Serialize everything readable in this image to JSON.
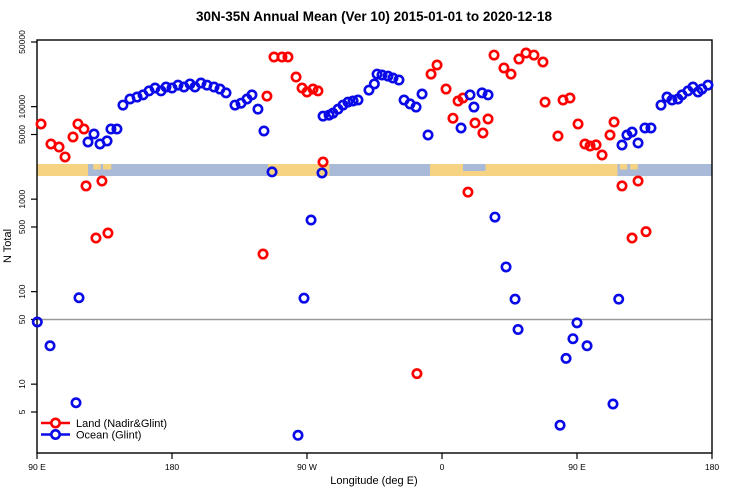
{
  "window": {
    "background": "#ffffff"
  },
  "chart_data": {
    "type": "scatter",
    "title": "30N-35N Annual Mean (Ver 10)   2015-01-01 to 2020-12-18",
    "xlabel": "Longitude (deg E)",
    "ylabel": "N Total",
    "x_axis": {
      "min": 90,
      "max": 540,
      "ticks": [
        {
          "value": 90,
          "label": "90 E"
        },
        {
          "value": 180,
          "label": "180"
        },
        {
          "value": 270,
          "label": "90 W"
        },
        {
          "value": 360,
          "label": "0"
        },
        {
          "value": 450,
          "label": "90 E"
        },
        {
          "value": 540,
          "label": "180"
        }
      ]
    },
    "y_axis": {
      "scale": "log",
      "min": 2,
      "max": 60000,
      "ticks": [
        {
          "value": 50000,
          "label": "50000"
        },
        {
          "value": 10000,
          "label": "10000"
        },
        {
          "value": 5000,
          "label": "5000"
        },
        {
          "value": 1000,
          "label": "1000"
        },
        {
          "value": 500,
          "label": "500"
        },
        {
          "value": 100,
          "label": "100"
        },
        {
          "value": 50,
          "label": "50"
        },
        {
          "value": 10,
          "label": "10"
        },
        {
          "value": 5,
          "label": "5"
        }
      ]
    },
    "reference_line": {
      "value": 50,
      "color": "#999999"
    },
    "map_band": {
      "land_color": "#F6D383",
      "ocean_color": "#A9BAD9",
      "segments": [
        {
          "from": 90,
          "to": 124,
          "type": "land"
        },
        {
          "from": 124,
          "to": 244,
          "type": "ocean"
        },
        {
          "from": 244,
          "to": 285,
          "type": "land"
        },
        {
          "from": 285,
          "to": 352,
          "type": "ocean"
        },
        {
          "from": 352,
          "to": 374,
          "type": "land"
        },
        {
          "from": 374,
          "to": 389,
          "type": "mixed"
        },
        {
          "from": 389,
          "to": 477,
          "type": "land"
        },
        {
          "from": 477,
          "to": 540,
          "type": "ocean"
        }
      ],
      "islands": [
        {
          "from": 127.5,
          "to": 132.5
        },
        {
          "from": 134,
          "to": 139.5
        },
        {
          "from": 478.5,
          "to": 483.5
        },
        {
          "from": 485.5,
          "to": 490.5
        }
      ]
    },
    "legend": {
      "position": "bottom-left"
    },
    "series": [
      {
        "name": "Land (Nadir&Glint)",
        "color": "#FF0000",
        "points": [
          [
            92.7,
            6500
          ],
          [
            99.3,
            3950
          ],
          [
            104.7,
            3660
          ],
          [
            108.7,
            2860
          ],
          [
            114,
            4700
          ],
          [
            117.3,
            6500
          ],
          [
            121.3,
            5730
          ],
          [
            122.7,
            1390
          ],
          [
            129.3,
            380
          ],
          [
            133.3,
            1570
          ],
          [
            137.3,
            430
          ],
          [
            240.7,
            255
          ],
          [
            243.3,
            13000
          ],
          [
            248,
            34400
          ],
          [
            253.3,
            34400
          ],
          [
            257.3,
            34400
          ],
          [
            262.7,
            20900
          ],
          [
            266.7,
            15900
          ],
          [
            270,
            14400
          ],
          [
            274,
            15500
          ],
          [
            277.3,
            14800
          ],
          [
            280.7,
            2520
          ],
          [
            343.3,
            13
          ],
          [
            352.7,
            22500
          ],
          [
            356.7,
            28200
          ],
          [
            362.7,
            15500
          ],
          [
            367.3,
            7500
          ],
          [
            370.7,
            11500
          ],
          [
            374,
            12400
          ],
          [
            377.3,
            1190
          ],
          [
            382,
            6650
          ],
          [
            387.3,
            5190
          ],
          [
            390.7,
            7360
          ],
          [
            394.7,
            36100
          ],
          [
            401.3,
            26200
          ],
          [
            406,
            22500
          ],
          [
            411.3,
            32700
          ],
          [
            416,
            38000
          ],
          [
            421.3,
            36100
          ],
          [
            427.3,
            30400
          ],
          [
            428.7,
            11200
          ],
          [
            437.3,
            4820
          ],
          [
            440.7,
            11800
          ],
          [
            445.3,
            12400
          ],
          [
            450.7,
            6500
          ],
          [
            455.3,
            3950
          ],
          [
            458.7,
            3760
          ],
          [
            462.7,
            3860
          ],
          [
            466.7,
            3000
          ],
          [
            472,
            4940
          ],
          [
            474.7,
            6820
          ],
          [
            480,
            1390
          ],
          [
            486.7,
            380
          ],
          [
            490.7,
            1570
          ],
          [
            496,
            445
          ]
        ]
      },
      {
        "name": "Ocean (Glint)",
        "color": "#0A0AE8",
        "points": [
          [
            90.2,
            47
          ],
          [
            98.7,
            26
          ],
          [
            116,
            6.3
          ],
          [
            118,
            86
          ],
          [
            124,
            4150
          ],
          [
            128,
            5060
          ],
          [
            132,
            3950
          ],
          [
            136.7,
            4260
          ],
          [
            139.3,
            5730
          ],
          [
            143.3,
            5730
          ],
          [
            147.3,
            10400
          ],
          [
            152,
            12100
          ],
          [
            156.7,
            12700
          ],
          [
            160.7,
            13400
          ],
          [
            164.7,
            14800
          ],
          [
            168.7,
            15900
          ],
          [
            172.7,
            14800
          ],
          [
            176,
            16300
          ],
          [
            180,
            15900
          ],
          [
            184,
            17100
          ],
          [
            188,
            16300
          ],
          [
            192,
            17600
          ],
          [
            195.3,
            16300
          ],
          [
            199.3,
            18000
          ],
          [
            203.3,
            17100
          ],
          [
            208,
            16300
          ],
          [
            212,
            15500
          ],
          [
            216,
            14100
          ],
          [
            222,
            10400
          ],
          [
            226,
            10900
          ],
          [
            230,
            12100
          ],
          [
            233.3,
            13400
          ],
          [
            237.3,
            9400
          ],
          [
            241.3,
            5460
          ],
          [
            246.7,
            1970
          ],
          [
            264,
            2.8
          ],
          [
            268,
            85
          ],
          [
            272.7,
            595
          ],
          [
            280,
            1920
          ],
          [
            280.7,
            7900
          ],
          [
            284.7,
            8100
          ],
          [
            287.3,
            8500
          ],
          [
            290.7,
            9400
          ],
          [
            294,
            10400
          ],
          [
            297.3,
            11200
          ],
          [
            300.7,
            11500
          ],
          [
            304,
            11800
          ],
          [
            311.3,
            15100
          ],
          [
            314.9,
            17600
          ],
          [
            316.7,
            22500
          ],
          [
            320,
            22000
          ],
          [
            324,
            21400
          ],
          [
            327.3,
            20400
          ],
          [
            331.3,
            19400
          ],
          [
            334.7,
            11800
          ],
          [
            338.7,
            10700
          ],
          [
            342.7,
            9900
          ],
          [
            346.7,
            13700
          ],
          [
            350.7,
            4940
          ],
          [
            372.7,
            5880
          ],
          [
            378.7,
            13400
          ],
          [
            381.3,
            9900
          ],
          [
            386.7,
            14100
          ],
          [
            390.7,
            13400
          ],
          [
            395.3,
            640
          ],
          [
            402.7,
            185
          ],
          [
            408.7,
            83
          ],
          [
            410.7,
            39
          ],
          [
            438.7,
            3.6
          ],
          [
            442.7,
            19
          ],
          [
            447.3,
            31
          ],
          [
            450,
            46
          ],
          [
            456.7,
            26
          ],
          [
            474,
            6.1
          ],
          [
            477.8,
            83
          ],
          [
            480,
            3850
          ],
          [
            483.3,
            4940
          ],
          [
            486.7,
            5320
          ],
          [
            490.7,
            4050
          ],
          [
            495.3,
            5880
          ],
          [
            499.3,
            5880
          ],
          [
            506,
            10400
          ],
          [
            510,
            12700
          ],
          [
            513.3,
            11800
          ],
          [
            517.3,
            12100
          ],
          [
            520,
            13400
          ],
          [
            524,
            14800
          ],
          [
            527.3,
            16300
          ],
          [
            530.7,
            14400
          ],
          [
            533.3,
            15500
          ],
          [
            537.3,
            17100
          ]
        ]
      }
    ]
  }
}
